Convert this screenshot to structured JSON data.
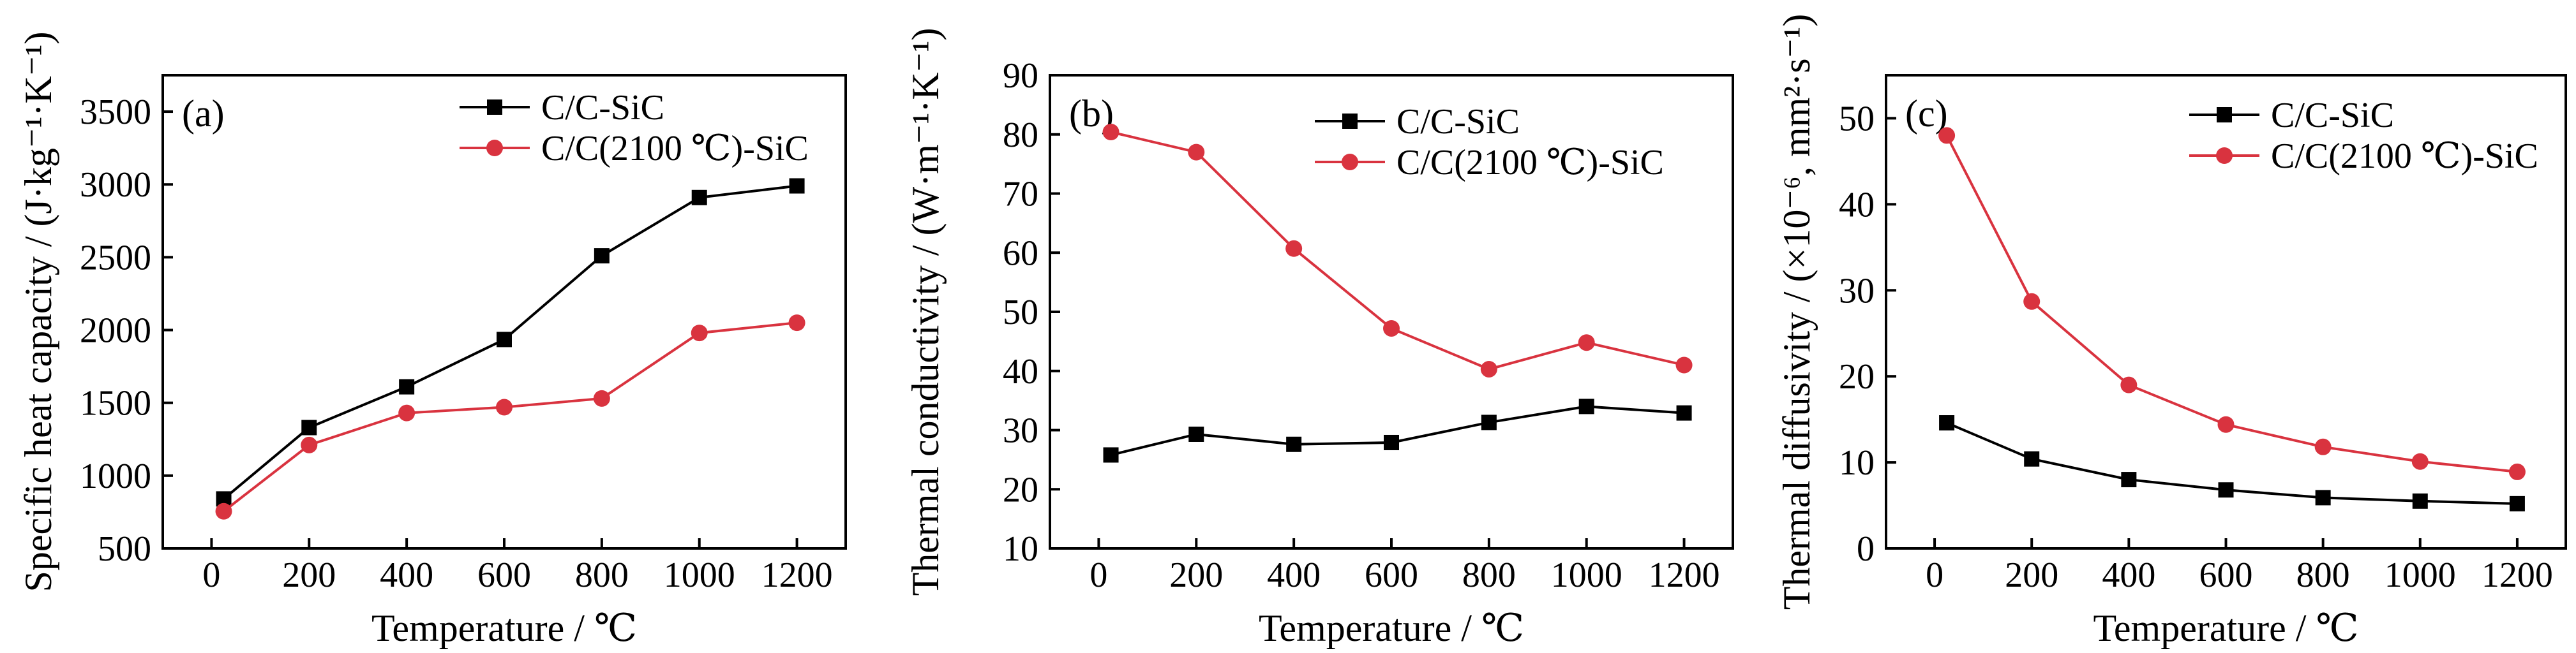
{
  "colors": {
    "black_series": "#000000",
    "red_series": "#d9333f",
    "axis": "#000000"
  },
  "chart_data": [
    {
      "type": "line",
      "panel_label": "(a)",
      "xlabel": "Temperature / ℃",
      "ylabel": "Specific heat capacity / (J·kg⁻¹·K⁻¹)",
      "xlim": [
        -100,
        1300
      ],
      "ylim": [
        500,
        3750
      ],
      "xticks": [
        0,
        200,
        400,
        600,
        800,
        1000,
        1200
      ],
      "yticks": [
        500,
        1000,
        1500,
        2000,
        2500,
        3000,
        3500
      ],
      "x": [
        25,
        200,
        400,
        600,
        800,
        1000,
        1200
      ],
      "legend_position": "top-right",
      "series": [
        {
          "name": "C/C-SiC",
          "color": "#000000",
          "marker": "square",
          "values": [
            840,
            1330,
            1610,
            1935,
            2510,
            2910,
            2990
          ]
        },
        {
          "name": "C/C(2100 ℃)-SiC",
          "color": "#d9333f",
          "marker": "circle",
          "values": [
            755,
            1210,
            1430,
            1470,
            1530,
            1980,
            2050
          ]
        }
      ]
    },
    {
      "type": "line",
      "panel_label": "(b)",
      "xlabel": "Temperature / ℃",
      "ylabel": "Thermal conductivity / (W·m⁻¹·K⁻¹)",
      "xlim": [
        -100,
        1300
      ],
      "ylim": [
        10,
        90
      ],
      "xticks": [
        0,
        200,
        400,
        600,
        800,
        1000,
        1200
      ],
      "yticks": [
        10,
        20,
        30,
        40,
        50,
        60,
        70,
        80,
        90
      ],
      "x": [
        25,
        200,
        400,
        600,
        800,
        1000,
        1200
      ],
      "legend_position": "top-right",
      "series": [
        {
          "name": "C/C-SiC",
          "color": "#000000",
          "marker": "square",
          "values": [
            25.8,
            29.3,
            27.6,
            27.9,
            31.3,
            34.0,
            32.9
          ]
        },
        {
          "name": "C/C(2100 ℃)-SiC",
          "color": "#d9333f",
          "marker": "circle",
          "values": [
            80.4,
            77.0,
            60.7,
            47.2,
            40.3,
            44.8,
            41.0
          ]
        }
      ]
    },
    {
      "type": "line",
      "panel_label": "(c)",
      "xlabel": "Temperature / ℃",
      "ylabel": "Thermal diffusivity / (×10⁻⁶, mm²·s⁻¹)",
      "xlim": [
        -100,
        1300
      ],
      "ylim": [
        0,
        55
      ],
      "xticks": [
        0,
        200,
        400,
        600,
        800,
        1000,
        1200
      ],
      "yticks": [
        0,
        10,
        20,
        30,
        40,
        50
      ],
      "x": [
        25,
        200,
        400,
        600,
        800,
        1000,
        1200
      ],
      "legend_position": "top-right",
      "series": [
        {
          "name": "C/C-SiC",
          "color": "#000000",
          "marker": "square",
          "values": [
            14.6,
            10.4,
            8.0,
            6.8,
            5.9,
            5.5,
            5.2
          ]
        },
        {
          "name": "C/C(2100 ℃)-SiC",
          "color": "#d9333f",
          "marker": "circle",
          "values": [
            48.0,
            28.7,
            19.0,
            14.4,
            11.8,
            10.1,
            8.9
          ]
        }
      ]
    }
  ]
}
